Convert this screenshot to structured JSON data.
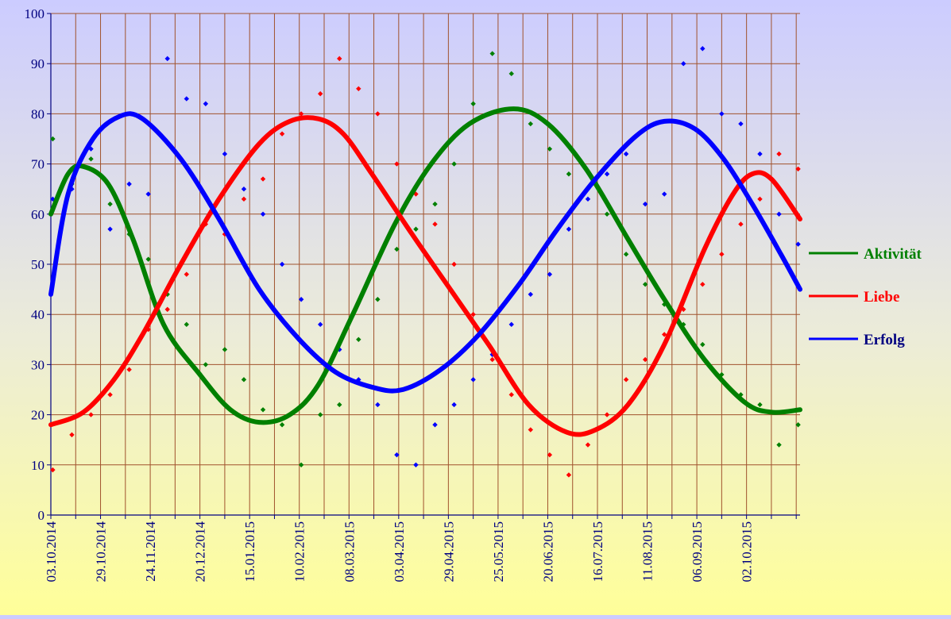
{
  "chart_data": {
    "type": "line",
    "title": "",
    "xlabel": "",
    "ylabel": "",
    "ylim": [
      0,
      100
    ],
    "y_ticks": [
      0,
      10,
      20,
      30,
      40,
      50,
      60,
      70,
      80,
      90,
      100
    ],
    "x_range": [
      "2014-10-03",
      "2015-10-30"
    ],
    "x_tick_labels": [
      "03.10.2014",
      "29.10.2014",
      "24.11.2014",
      "20.12.2014",
      "15.01.2015",
      "10.02.2015",
      "08.03.2015",
      "03.04.2015",
      "29.04.2015",
      "25.05.2015",
      "20.06.2015",
      "16.07.2015",
      "11.08.2015",
      "06.09.2015",
      "02.10.2015"
    ],
    "x_tick_dates": [
      "2014-10-03",
      "2014-10-29",
      "2014-11-24",
      "2014-12-20",
      "2015-01-15",
      "2015-02-10",
      "2015-03-08",
      "2015-04-03",
      "2015-04-29",
      "2015-05-25",
      "2015-06-20",
      "2015-07-16",
      "2015-08-11",
      "2015-09-06",
      "2015-10-02"
    ],
    "grid": true,
    "legend_position": "right",
    "series": [
      {
        "name": "Aktivität",
        "color": "#008000",
        "trend": {
          "x": [
            "2014-10-03",
            "2014-10-12",
            "2014-10-20",
            "2014-11-02",
            "2014-11-15",
            "2014-12-01",
            "2014-12-20",
            "2015-01-05",
            "2015-01-20",
            "2015-02-05",
            "2015-02-20",
            "2015-03-10",
            "2015-04-01",
            "2015-04-20",
            "2015-05-10",
            "2015-06-02",
            "2015-06-20",
            "2015-07-10",
            "2015-08-01",
            "2015-08-20",
            "2015-09-10",
            "2015-10-01",
            "2015-10-15",
            "2015-10-30"
          ],
          "y": [
            60,
            68,
            69.5,
            66,
            55,
            38,
            28,
            21,
            18.5,
            20,
            26,
            40,
            58,
            70,
            78,
            81,
            78,
            69,
            55,
            43,
            31,
            22.5,
            20.5,
            21
          ]
        },
        "points": {
          "x": [
            "2014-10-04",
            "2014-10-14",
            "2014-10-24",
            "2014-11-03",
            "2014-11-13",
            "2014-11-23",
            "2014-12-03",
            "2014-12-13",
            "2014-12-23",
            "2015-01-02",
            "2015-01-12",
            "2015-01-22",
            "2015-02-01",
            "2015-02-11",
            "2015-02-21",
            "2015-03-03",
            "2015-03-13",
            "2015-03-23",
            "2015-04-02",
            "2015-04-12",
            "2015-04-22",
            "2015-05-02",
            "2015-05-12",
            "2015-05-22",
            "2015-06-01",
            "2015-06-11",
            "2015-06-21",
            "2015-07-01",
            "2015-07-11",
            "2015-07-21",
            "2015-07-31",
            "2015-08-10",
            "2015-08-20",
            "2015-08-30",
            "2015-09-09",
            "2015-09-19",
            "2015-09-29",
            "2015-10-09",
            "2015-10-19",
            "2015-10-29"
          ],
          "y": [
            75,
            66,
            71,
            62,
            56,
            51,
            44,
            38,
            30,
            33,
            27,
            21,
            18,
            10,
            20,
            22,
            35,
            43,
            53,
            57,
            62,
            70,
            82,
            92,
            88,
            78,
            73,
            68,
            65,
            60,
            52,
            46,
            42,
            38,
            34,
            28,
            24,
            22,
            14,
            18
          ]
        }
      },
      {
        "name": "Liebe",
        "color": "#ff0000",
        "trend": {
          "x": [
            "2014-10-03",
            "2014-10-20",
            "2014-11-05",
            "2014-11-20",
            "2014-12-10",
            "2014-12-30",
            "2015-01-20",
            "2015-02-05",
            "2015-02-20",
            "2015-03-05",
            "2015-03-20",
            "2015-04-10",
            "2015-04-30",
            "2015-05-20",
            "2015-06-10",
            "2015-06-30",
            "2015-07-15",
            "2015-08-01",
            "2015-08-20",
            "2015-09-10",
            "2015-09-25",
            "2015-10-05",
            "2015-10-15",
            "2015-10-30"
          ],
          "y": [
            18,
            20.5,
            27,
            36,
            50,
            63,
            74,
            78.5,
            79,
            76,
            68,
            56,
            45,
            34,
            22,
            16.5,
            17,
            22,
            34,
            53,
            64,
            68,
            67,
            59
          ]
        },
        "points": {
          "x": [
            "2014-10-04",
            "2014-10-14",
            "2014-10-24",
            "2014-11-03",
            "2014-11-13",
            "2014-11-23",
            "2014-12-03",
            "2014-12-13",
            "2014-12-23",
            "2015-01-02",
            "2015-01-12",
            "2015-01-22",
            "2015-02-01",
            "2015-02-11",
            "2015-02-21",
            "2015-03-03",
            "2015-03-13",
            "2015-03-23",
            "2015-04-02",
            "2015-04-12",
            "2015-04-22",
            "2015-05-02",
            "2015-05-12",
            "2015-05-22",
            "2015-06-01",
            "2015-06-11",
            "2015-06-21",
            "2015-07-01",
            "2015-07-11",
            "2015-07-21",
            "2015-07-31",
            "2015-08-10",
            "2015-08-20",
            "2015-08-30",
            "2015-09-09",
            "2015-09-19",
            "2015-09-29",
            "2015-10-09",
            "2015-10-19",
            "2015-10-29"
          ],
          "y": [
            9,
            16,
            20,
            24,
            29,
            37,
            41,
            48,
            58,
            56,
            63,
            67,
            76,
            80,
            84,
            91,
            85,
            80,
            70,
            64,
            58,
            50,
            40,
            31,
            24,
            17,
            12,
            8,
            14,
            20,
            27,
            31,
            36,
            41,
            46,
            52,
            58,
            63,
            72,
            69
          ]
        }
      },
      {
        "name": "Erfolg",
        "color": "#0000ff",
        "trend": {
          "x": [
            "2014-10-03",
            "2014-10-12",
            "2014-10-25",
            "2014-11-08",
            "2014-11-20",
            "2014-12-10",
            "2014-12-30",
            "2015-01-20",
            "2015-02-10",
            "2015-03-01",
            "2015-03-20",
            "2015-04-05",
            "2015-04-25",
            "2015-05-15",
            "2015-06-05",
            "2015-06-25",
            "2015-07-15",
            "2015-08-05",
            "2015-08-20",
            "2015-09-05",
            "2015-09-20",
            "2015-10-05",
            "2015-10-20",
            "2015-10-30"
          ],
          "y": [
            44,
            64,
            75,
            79.5,
            79,
            71,
            59,
            45,
            35,
            28.5,
            25.5,
            25,
            29,
            36,
            46,
            57,
            67,
            75.5,
            78.5,
            77,
            71,
            62,
            52,
            45
          ]
        },
        "points": {
          "x": [
            "2014-10-04",
            "2014-10-14",
            "2014-10-24",
            "2014-11-03",
            "2014-11-13",
            "2014-11-23",
            "2014-12-03",
            "2014-12-13",
            "2014-12-23",
            "2015-01-02",
            "2015-01-12",
            "2015-01-22",
            "2015-02-01",
            "2015-02-11",
            "2015-02-21",
            "2015-03-03",
            "2015-03-13",
            "2015-03-23",
            "2015-04-02",
            "2015-04-12",
            "2015-04-22",
            "2015-05-02",
            "2015-05-12",
            "2015-05-22",
            "2015-06-01",
            "2015-06-11",
            "2015-06-21",
            "2015-07-01",
            "2015-07-11",
            "2015-07-21",
            "2015-07-31",
            "2015-08-10",
            "2015-08-20",
            "2015-08-30",
            "2015-09-09",
            "2015-09-19",
            "2015-09-29",
            "2015-10-09",
            "2015-10-19",
            "2015-10-29"
          ],
          "y": [
            63,
            65,
            73,
            57,
            66,
            64,
            91,
            83,
            82,
            72,
            65,
            60,
            50,
            43,
            38,
            33,
            27,
            22,
            12,
            10,
            18,
            22,
            27,
            32,
            38,
            44,
            48,
            57,
            63,
            68,
            72,
            62,
            64,
            90,
            93,
            80,
            78,
            72,
            60,
            54
          ]
        }
      }
    ]
  }
}
